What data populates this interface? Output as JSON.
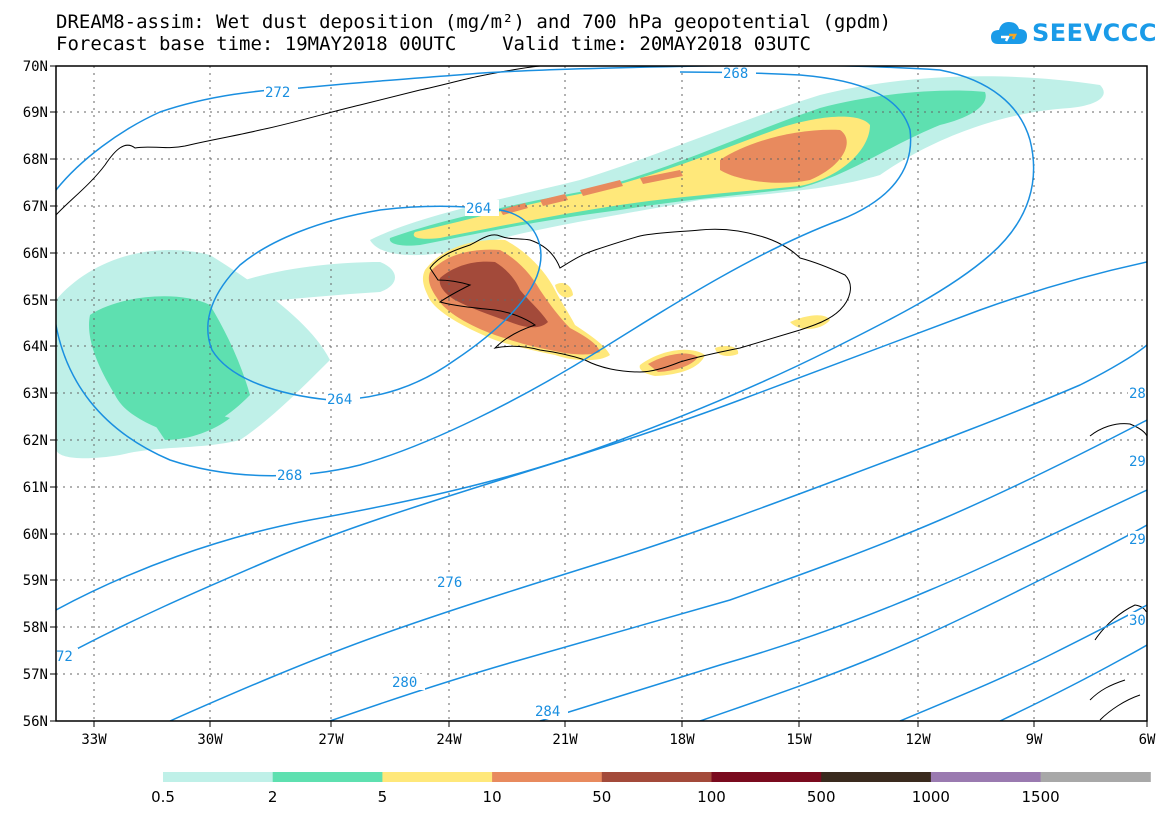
{
  "title_line1": "DREAM8-assim: Wet dust deposition (mg/m²) and 700 hPa geopotential (gpdm)",
  "title_line2": "Forecast base time: 19MAY2018 00UTC    Valid time: 20MAY2018 03UTC",
  "logo": {
    "text": "SEEVCCC",
    "icon": "cloud-icon",
    "color": "#1a9be8"
  },
  "map": {
    "lat_labels": [
      "70N",
      "69N",
      "68N",
      "67N",
      "66N",
      "65N",
      "64N",
      "63N",
      "62N",
      "61N",
      "60N",
      "59N",
      "58N",
      "57N",
      "56N"
    ],
    "lon_labels": [
      "33W",
      "30W",
      "27W",
      "24W",
      "21W",
      "18W",
      "15W",
      "12W",
      "9W",
      "6W"
    ],
    "grid": true,
    "contour_color": "#1a8fe0",
    "contour_labels": [
      "272",
      "268",
      "264",
      "264",
      "268",
      "276",
      "280",
      "284",
      "72",
      "28",
      "29",
      "29",
      "30"
    ],
    "coastline_color": "#000000"
  },
  "colorbar": {
    "labels": [
      "0.5",
      "2",
      "5",
      "10",
      "50",
      "100",
      "500",
      "1000",
      "1500"
    ],
    "colors": [
      "#bff0e8",
      "#5ee0b0",
      "#ffe87a",
      "#e88a5e",
      "#a34a3a",
      "#7a0a1e",
      "#3a2a1e",
      "#9a7ab0",
      "#a8a8a8"
    ]
  },
  "dust_colors": {
    "light": "#bff0e8",
    "green": "#5ee0b0",
    "yellow": "#ffe87a",
    "orange": "#e88a5e",
    "brown": "#a34a3a"
  }
}
